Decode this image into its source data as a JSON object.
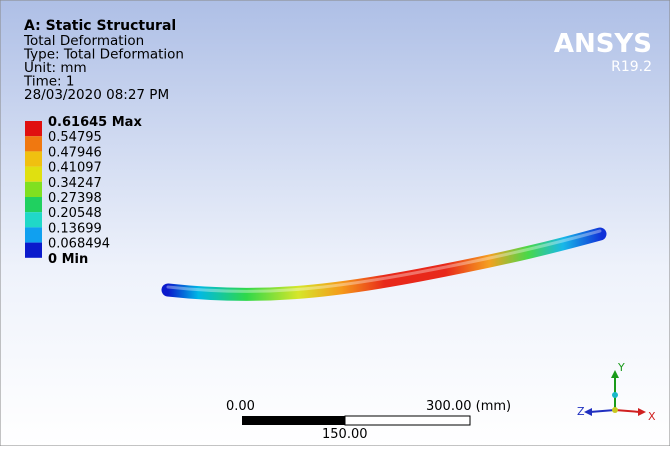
{
  "header": {
    "title": "A: Static Structural",
    "lines": [
      "Total Deformation",
      "Type: Total Deformation",
      "Unit: mm",
      "Time: 1",
      "28/03/2020 08:27 PM"
    ]
  },
  "legend": {
    "max": "0.61645 Max",
    "levels": [
      "0.54795",
      "0.47946",
      "0.41097",
      "0.34247",
      "0.27398",
      "0.20548",
      "0.13699",
      "0.068494"
    ],
    "min": "0 Min"
  },
  "logo": {
    "name": "ANSYS",
    "version": "R19.2"
  },
  "scale_bar": {
    "start": "0.00",
    "end": "300.00 (mm)",
    "mid": "150.00"
  },
  "triad": {
    "y": "Y",
    "z": "Z",
    "x": "X"
  }
}
